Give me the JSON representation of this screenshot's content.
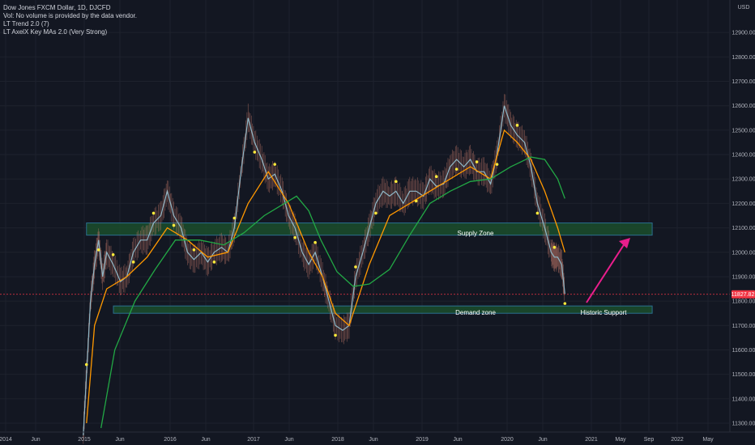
{
  "legend": {
    "line1": "Dow Jones FXCM Dollar, 1D, DJCFD",
    "line2": "Vol: No volume is provided by the data vendor.",
    "line3": "LT Trend 2.0 (7)",
    "line4": "LT AxelX Key MAs 2.0 (Very Strong)"
  },
  "currency": "USD",
  "price_tag": "11827.82",
  "colors": {
    "background": "#131722",
    "grid": "#1e222d",
    "supply_fill": "#1b4d2b",
    "zone_border": "#2a6f8f",
    "ma_fast": "#ff9800",
    "ma_slow": "#22a845",
    "price_tag_bg": "#f23645",
    "arrow": "#e91e8c",
    "dots": "#ffeb3b"
  },
  "annotations": {
    "supply_label": "Supply Zone",
    "demand_label": "Demand zone",
    "support_label": "Historic Support"
  },
  "chart_data": {
    "type": "line",
    "title": "Dow Jones FXCM Dollar, 1D, DJCFD",
    "xlabel": "",
    "ylabel": "USD",
    "grid": true,
    "y_range": [
      11250,
      13050
    ],
    "y_ticks": [
      "12900.00",
      "12800.00",
      "12700.00",
      "12600.00",
      "12500.00",
      "12400.00",
      "12300.00",
      "12200.00",
      "12100.00",
      "12000.00",
      "11900.00",
      "11800.00",
      "11700.00",
      "11600.00",
      "11500.00",
      "11400.00",
      "11300.00"
    ],
    "x_ticks": [
      "2014",
      "Jun",
      "2015",
      "Jun",
      "2016",
      "Jun",
      "2017",
      "Jun",
      "2018",
      "Jun",
      "2019",
      "Jun",
      "2020",
      "Jun",
      "2021",
      "May",
      "Sep",
      "2022",
      "May"
    ],
    "zones": [
      {
        "name": "Supply Zone",
        "low": 12070,
        "high": 12120,
        "from": "2015-01",
        "to": "2022-01"
      },
      {
        "name": "Demand zone",
        "low": 11750,
        "high": 11780,
        "from": "2015-05",
        "to": "2022-01"
      }
    ],
    "series": [
      {
        "values": [
          [
            2014.96,
            11250
          ],
          [
            2015.0,
            11500
          ],
          [
            2015.05,
            11800
          ],
          [
            2015.1,
            11950
          ],
          [
            2015.15,
            12050
          ],
          [
            2015.2,
            11900
          ],
          [
            2015.25,
            12000
          ],
          [
            2015.33,
            11950
          ],
          [
            2015.42,
            11880
          ],
          [
            2015.5,
            11900
          ],
          [
            2015.58,
            12000
          ],
          [
            2015.67,
            12050
          ],
          [
            2015.75,
            12050
          ],
          [
            2015.83,
            12120
          ],
          [
            2015.92,
            12150
          ],
          [
            2016.0,
            12250
          ],
          [
            2016.08,
            12150
          ],
          [
            2016.17,
            12100
          ],
          [
            2016.25,
            12000
          ],
          [
            2016.33,
            11970
          ],
          [
            2016.42,
            12000
          ],
          [
            2016.5,
            11960
          ],
          [
            2016.58,
            12000
          ],
          [
            2016.67,
            12020
          ],
          [
            2016.75,
            12000
          ],
          [
            2016.83,
            12100
          ],
          [
            2016.92,
            12350
          ],
          [
            2017.0,
            12550
          ],
          [
            2017.08,
            12450
          ],
          [
            2017.17,
            12380
          ],
          [
            2017.25,
            12300
          ],
          [
            2017.33,
            12320
          ],
          [
            2017.42,
            12250
          ],
          [
            2017.5,
            12150
          ],
          [
            2017.58,
            12100
          ],
          [
            2017.67,
            12000
          ],
          [
            2017.75,
            11950
          ],
          [
            2017.83,
            12000
          ],
          [
            2017.92,
            11900
          ],
          [
            2018.0,
            11800
          ],
          [
            2018.08,
            11700
          ],
          [
            2018.17,
            11680
          ],
          [
            2018.25,
            11700
          ],
          [
            2018.33,
            11900
          ],
          [
            2018.42,
            12000
          ],
          [
            2018.5,
            12100
          ],
          [
            2018.58,
            12200
          ],
          [
            2018.67,
            12250
          ],
          [
            2018.75,
            12230
          ],
          [
            2018.83,
            12250
          ],
          [
            2018.92,
            12200
          ],
          [
            2019.0,
            12250
          ],
          [
            2019.08,
            12250
          ],
          [
            2019.17,
            12230
          ],
          [
            2019.25,
            12300
          ],
          [
            2019.33,
            12270
          ],
          [
            2019.42,
            12280
          ],
          [
            2019.5,
            12350
          ],
          [
            2019.58,
            12380
          ],
          [
            2019.67,
            12350
          ],
          [
            2019.75,
            12380
          ],
          [
            2019.83,
            12330
          ],
          [
            2019.92,
            12330
          ],
          [
            2020.0,
            12280
          ],
          [
            2020.08,
            12400
          ],
          [
            2020.17,
            12600
          ],
          [
            2020.25,
            12520
          ],
          [
            2020.33,
            12480
          ],
          [
            2020.42,
            12450
          ],
          [
            2020.5,
            12350
          ],
          [
            2020.58,
            12200
          ],
          [
            2020.67,
            12100
          ],
          [
            2020.75,
            12000
          ],
          [
            2020.79,
            11980
          ],
          [
            2020.83,
            11980
          ],
          [
            2020.88,
            11950
          ],
          [
            2020.92,
            11830
          ]
        ]
      },
      {
        "values": [
          [
            2015.0,
            11300
          ],
          [
            2015.1,
            11700
          ],
          [
            2015.25,
            11850
          ],
          [
            2015.5,
            11900
          ],
          [
            2015.75,
            11980
          ],
          [
            2016.0,
            12100
          ],
          [
            2016.25,
            12050
          ],
          [
            2016.5,
            11980
          ],
          [
            2016.75,
            12000
          ],
          [
            2017.0,
            12200
          ],
          [
            2017.25,
            12330
          ],
          [
            2017.5,
            12200
          ],
          [
            2017.75,
            12000
          ],
          [
            2017.92,
            11900
          ],
          [
            2018.08,
            11750
          ],
          [
            2018.25,
            11700
          ],
          [
            2018.5,
            11950
          ],
          [
            2018.75,
            12150
          ],
          [
            2019.0,
            12200
          ],
          [
            2019.25,
            12250
          ],
          [
            2019.5,
            12300
          ],
          [
            2019.75,
            12350
          ],
          [
            2020.0,
            12300
          ],
          [
            2020.17,
            12500
          ],
          [
            2020.33,
            12450
          ],
          [
            2020.5,
            12380
          ],
          [
            2020.67,
            12250
          ],
          [
            2020.83,
            12100
          ],
          [
            2020.92,
            12000
          ]
        ]
      },
      {
        "values": [
          [
            2015.18,
            11280
          ],
          [
            2015.35,
            11600
          ],
          [
            2015.6,
            11800
          ],
          [
            2015.85,
            11930
          ],
          [
            2016.1,
            12050
          ],
          [
            2016.4,
            12050
          ],
          [
            2016.7,
            12030
          ],
          [
            2016.95,
            12080
          ],
          [
            2017.2,
            12150
          ],
          [
            2017.45,
            12200
          ],
          [
            2017.6,
            12230
          ],
          [
            2017.75,
            12170
          ],
          [
            2017.9,
            12050
          ],
          [
            2018.1,
            11920
          ],
          [
            2018.3,
            11860
          ],
          [
            2018.5,
            11870
          ],
          [
            2018.75,
            11930
          ],
          [
            2019.0,
            12070
          ],
          [
            2019.25,
            12200
          ],
          [
            2019.5,
            12250
          ],
          [
            2019.75,
            12290
          ],
          [
            2020.0,
            12300
          ],
          [
            2020.25,
            12350
          ],
          [
            2020.5,
            12390
          ],
          [
            2020.67,
            12380
          ],
          [
            2020.83,
            12300
          ],
          [
            2020.92,
            12220
          ]
        ]
      }
    ]
  }
}
